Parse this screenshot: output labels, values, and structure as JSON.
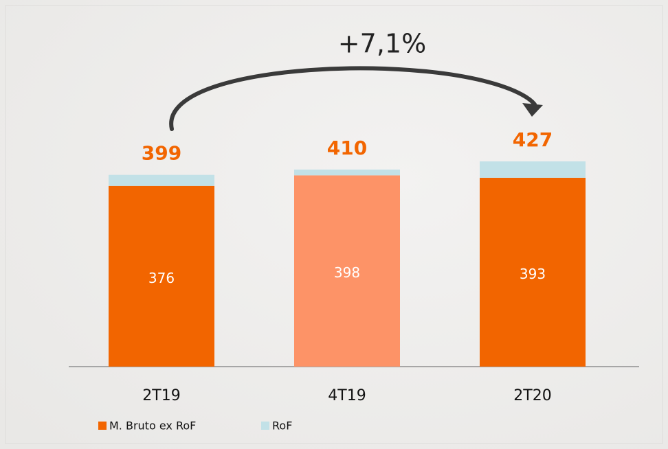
{
  "chart_data": {
    "type": "stacked_bar",
    "annotation": "+7,1%",
    "categories": [
      "2T19",
      "4T19",
      "2T20"
    ],
    "series": [
      {
        "name": "M. Bruto ex RoF",
        "color": "#f26500",
        "colors": [
          "#f26500",
          "#fd9367",
          "#f26500"
        ],
        "values": [
          376,
          398,
          393
        ]
      },
      {
        "name": "RoF",
        "color": "#c2e1e7",
        "values": [
          23,
          12,
          34
        ]
      }
    ],
    "totals": [
      399,
      410,
      427
    ],
    "total_color": "#f26500"
  }
}
